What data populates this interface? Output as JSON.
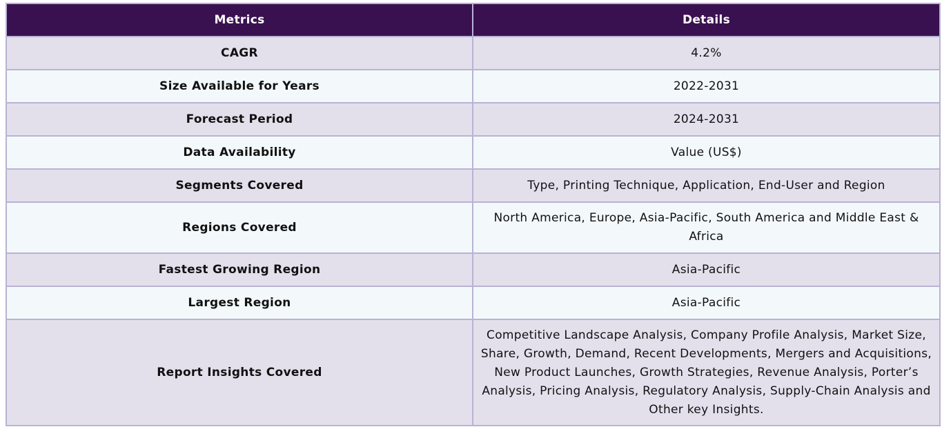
{
  "table": {
    "headers": {
      "metrics": "Metrics",
      "details": "Details"
    },
    "rows": [
      {
        "metric": "CAGR",
        "detail": "4.2%"
      },
      {
        "metric": "Size Available for Years",
        "detail": "2022-2031"
      },
      {
        "metric": "Forecast Period",
        "detail": "2024-2031"
      },
      {
        "metric": "Data Availability",
        "detail": "Value (US$)"
      },
      {
        "metric": "Segments Covered",
        "detail": "Type, Printing Technique, Application, End-User and Region"
      },
      {
        "metric": "Regions Covered",
        "detail": "North America, Europe, Asia-Pacific, South America and Middle East & Africa"
      },
      {
        "metric": "Fastest Growing Region",
        "detail": "Asia-Pacific"
      },
      {
        "metric": "Largest Region",
        "detail": "Asia-Pacific"
      },
      {
        "metric": "Report Insights Covered",
        "detail": "Competitive Landscape Analysis, Company Profile Analysis, Market Size, Share, Growth, Demand, Recent Developments, Mergers and Acquisitions, New Product Launches, Growth Strategies, Revenue Analysis, Porter’s Analysis, Pricing Analysis, Regulatory Analysis, Supply-Chain Analysis and Other key Insights."
      }
    ]
  },
  "colors": {
    "header_bg": "#3a1150",
    "row_odd_bg": "#e3e0ec",
    "row_even_bg": "#f3f9fb",
    "border": "#b8b2d4"
  }
}
